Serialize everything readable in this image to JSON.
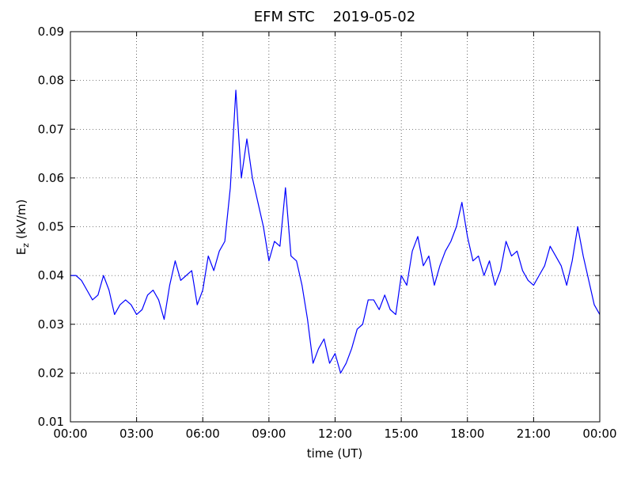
{
  "chart_data": {
    "type": "line",
    "title": "EFM STC    2019-05-02",
    "xlabel": "time (UT)",
    "ylabel": {
      "main": "E",
      "sub": "z",
      "unit": "(kV/m)"
    },
    "xlim": [
      0,
      24
    ],
    "ylim": [
      0.01,
      0.09
    ],
    "xticks": [
      {
        "value": 0,
        "label": "00:00"
      },
      {
        "value": 3,
        "label": "03:00"
      },
      {
        "value": 6,
        "label": "06:00"
      },
      {
        "value": 9,
        "label": "09:00"
      },
      {
        "value": 12,
        "label": "12:00"
      },
      {
        "value": 15,
        "label": "15:00"
      },
      {
        "value": 18,
        "label": "18:00"
      },
      {
        "value": 21,
        "label": "21:00"
      },
      {
        "value": 24,
        "label": "00:00"
      }
    ],
    "yticks": [
      {
        "value": 0.01,
        "label": "0.01"
      },
      {
        "value": 0.02,
        "label": "0.02"
      },
      {
        "value": 0.03,
        "label": "0.03"
      },
      {
        "value": 0.04,
        "label": "0.04"
      },
      {
        "value": 0.05,
        "label": "0.05"
      },
      {
        "value": 0.06,
        "label": "0.06"
      },
      {
        "value": 0.07,
        "label": "0.07"
      },
      {
        "value": 0.08,
        "label": "0.08"
      },
      {
        "value": 0.09,
        "label": "0.09"
      }
    ],
    "grid": true,
    "x": [
      0,
      0.25,
      0.5,
      0.75,
      1,
      1.25,
      1.5,
      1.75,
      2,
      2.25,
      2.5,
      2.75,
      3,
      3.25,
      3.5,
      3.75,
      4,
      4.25,
      4.5,
      4.75,
      5,
      5.25,
      5.5,
      5.75,
      6,
      6.25,
      6.5,
      6.75,
      7,
      7.25,
      7.5,
      7.75,
      8,
      8.25,
      8.5,
      8.75,
      9,
      9.25,
      9.5,
      9.75,
      10,
      10.25,
      10.5,
      10.75,
      11,
      11.25,
      11.5,
      11.75,
      12,
      12.25,
      12.5,
      12.75,
      13,
      13.25,
      13.5,
      13.75,
      14,
      14.25,
      14.5,
      14.75,
      15,
      15.25,
      15.5,
      15.75,
      16,
      16.25,
      16.5,
      16.75,
      17,
      17.25,
      17.5,
      17.75,
      18,
      18.25,
      18.5,
      18.75,
      19,
      19.25,
      19.5,
      19.75,
      20,
      20.25,
      20.5,
      20.75,
      21,
      21.25,
      21.5,
      21.75,
      22,
      22.25,
      22.5,
      22.75,
      23,
      23.25,
      23.5,
      23.75,
      24
    ],
    "series": [
      {
        "color": "#0000ff",
        "values": [
          0.04,
          0.04,
          0.039,
          0.037,
          0.035,
          0.036,
          0.04,
          0.037,
          0.032,
          0.034,
          0.035,
          0.034,
          0.032,
          0.033,
          0.036,
          0.037,
          0.035,
          0.031,
          0.038,
          0.043,
          0.039,
          0.04,
          0.041,
          0.034,
          0.037,
          0.044,
          0.041,
          0.045,
          0.047,
          0.058,
          0.078,
          0.06,
          0.068,
          0.06,
          0.055,
          0.05,
          0.043,
          0.047,
          0.046,
          0.058,
          0.044,
          0.043,
          0.038,
          0.031,
          0.022,
          0.025,
          0.027,
          0.022,
          0.024,
          0.02,
          0.022,
          0.025,
          0.029,
          0.03,
          0.035,
          0.035,
          0.033,
          0.036,
          0.033,
          0.032,
          0.04,
          0.038,
          0.045,
          0.048,
          0.042,
          0.044,
          0.038,
          0.042,
          0.045,
          0.047,
          0.05,
          0.055,
          0.048,
          0.043,
          0.044,
          0.04,
          0.043,
          0.038,
          0.041,
          0.047,
          0.044,
          0.045,
          0.041,
          0.039,
          0.038,
          0.04,
          0.042,
          0.046,
          0.044,
          0.042,
          0.038,
          0.043,
          0.05,
          0.044,
          0.039,
          0.034,
          0.032
        ]
      }
    ]
  }
}
